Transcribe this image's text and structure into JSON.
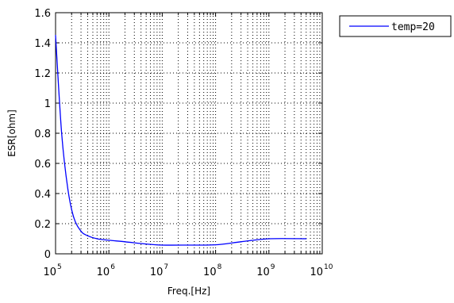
{
  "chart_data": {
    "type": "line",
    "xlabel": "Freq.[Hz]",
    "ylabel": "ESR[ohm]",
    "x_scale": "log",
    "xlim": [
      100000,
      10000000000
    ],
    "ylim": [
      0,
      1.6
    ],
    "x_ticks": [
      {
        "base": "10",
        "exp": "5"
      },
      {
        "base": "10",
        "exp": "6"
      },
      {
        "base": "10",
        "exp": "7"
      },
      {
        "base": "10",
        "exp": "8"
      },
      {
        "base": "10",
        "exp": "9"
      },
      {
        "base": "10",
        "exp": "10"
      }
    ],
    "y_ticks": [
      "0",
      "0.2",
      "0.4",
      "0.6",
      "0.8",
      "1",
      "1.2",
      "1.4",
      "1.6"
    ],
    "grid": "dotted",
    "legend_position": "outside-top-right",
    "series": [
      {
        "name": "temp=20",
        "color": "#0000ff",
        "x": [
          100000,
          130000,
          170000,
          220000,
          300000,
          400000,
          600000,
          1000000,
          2000000,
          5000000,
          10000000,
          30000000,
          100000000,
          300000000,
          1000000000,
          5000000000
        ],
        "y": [
          1.45,
          0.8,
          0.43,
          0.24,
          0.15,
          0.12,
          0.1,
          0.09,
          0.08,
          0.065,
          0.058,
          0.058,
          0.06,
          0.08,
          0.1,
          0.1
        ]
      }
    ]
  }
}
